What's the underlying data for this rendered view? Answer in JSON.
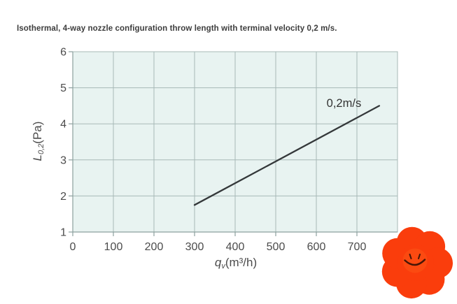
{
  "header": {
    "title": "Isothermal, 4-way nozzle configuration throw length with terminal velocity 0,2 m/s."
  },
  "chart_data": {
    "type": "line",
    "title": "Isothermal, 4-way nozzle configuration throw length with terminal velocity 0,2 m/s.",
    "xlabel": {
      "main": "q",
      "sub": "v",
      "rest": "(m³/h)"
    },
    "ylabel": {
      "main": "L",
      "sub": "0,2",
      "rest": "(Pa)"
    },
    "xlim": [
      0,
      800
    ],
    "ylim": [
      1,
      6
    ],
    "xticks": [
      0,
      100,
      200,
      300,
      400,
      500,
      600,
      700
    ],
    "yticks": [
      1,
      2,
      3,
      4,
      5,
      6
    ],
    "grid": true,
    "legend_position": "none",
    "series": [
      {
        "name": "0,2m/s",
        "points": [
          [
            300,
            1.75
          ],
          [
            755,
            4.5
          ]
        ]
      }
    ],
    "annotations": [
      {
        "text": "0,2m/s",
        "x": 668,
        "y": 4.57
      }
    ]
  },
  "colors": {
    "plot_background": "#e8f3f1",
    "gridline": "#a7b9b7",
    "axis": "#8ca09e",
    "tick_text": "#4b4b4b",
    "series_line": "#34383a",
    "annotation_text": "#333333",
    "title_text": "#3d3d3d",
    "flower_petal": "#fa3d0c",
    "flower_face": "#fb4a11",
    "flower_features": "#471607"
  }
}
